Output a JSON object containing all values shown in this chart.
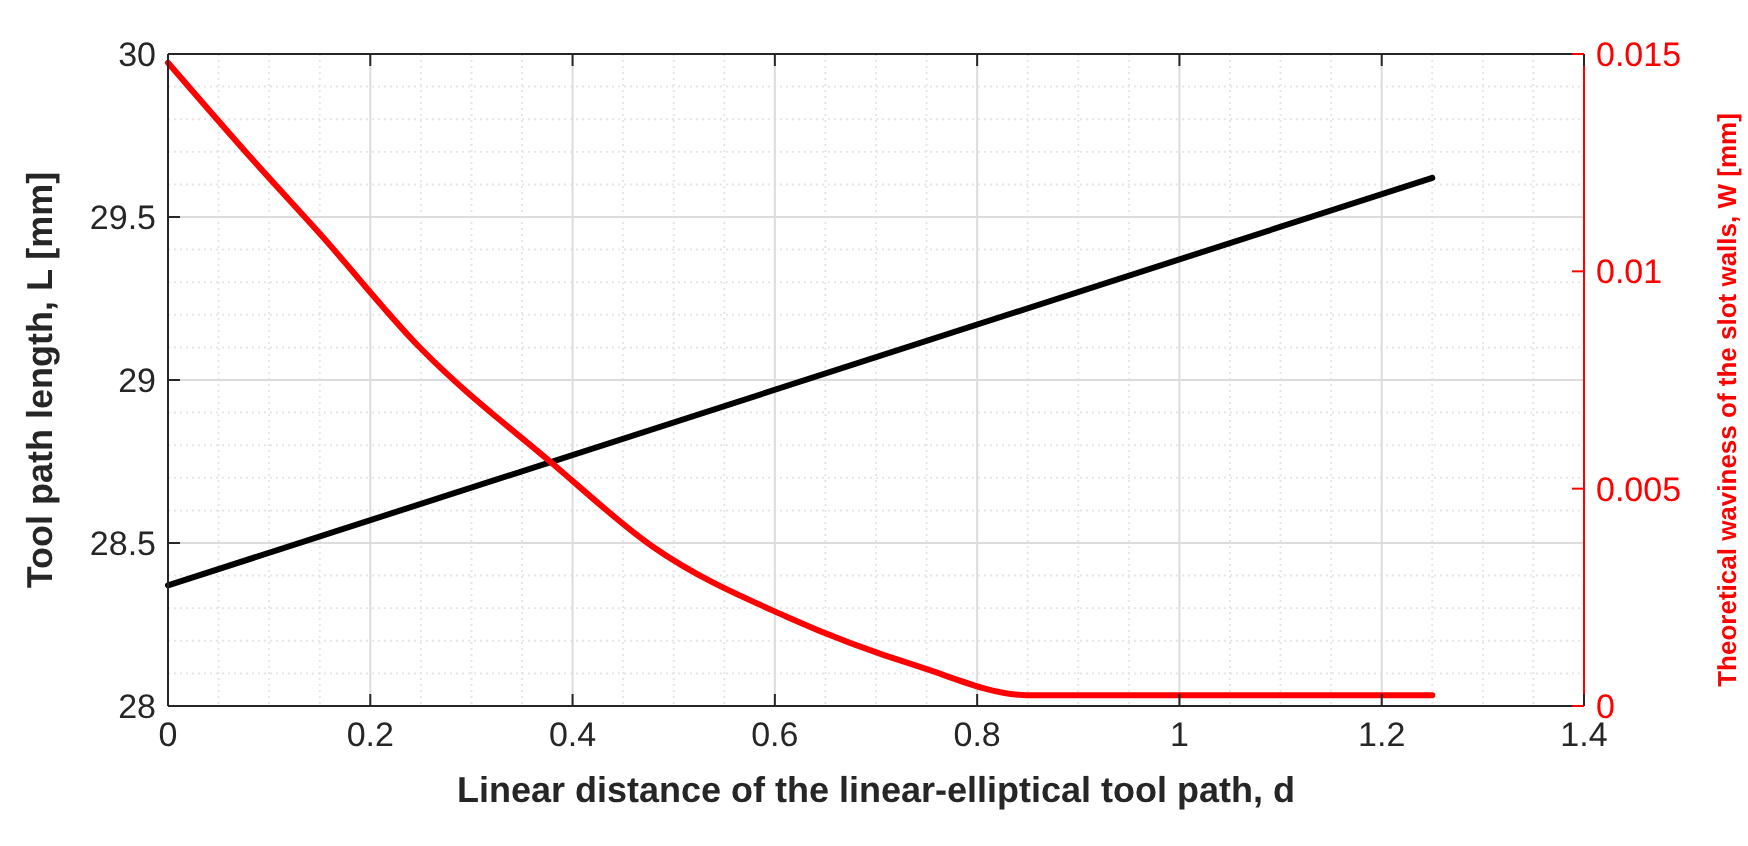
{
  "chart_data": {
    "type": "line",
    "xlabel": "Linear distance of the linear-elliptical tool path, d",
    "ylabel": "Tool path length, L [mm]",
    "y2label": "Theoretical waviness of the slot walls, W [mm]",
    "xlim": [
      0,
      1.4
    ],
    "xticks": [
      0,
      0.2,
      0.4,
      0.6,
      0.8,
      1,
      1.2,
      1.4
    ],
    "ylim": [
      28,
      30
    ],
    "yticks": [
      28,
      28.5,
      29,
      29.5,
      30
    ],
    "y2lim": [
      0,
      0.015
    ],
    "y2ticks": [
      0,
      0.005,
      0.01,
      0.015
    ],
    "grid": true,
    "line_style": "solid",
    "marker": "none",
    "series": [
      {
        "color": "#000000",
        "x": [
          0,
          1.25
        ],
        "values": [
          28.37,
          29.62
        ]
      },
      {
        "color": "#ff0000",
        "axis": "y2",
        "x": [
          0,
          0.084,
          0.15,
          0.248,
          0.38,
          0.479,
          0.611,
          0.742,
          0.85,
          1.25
        ],
        "values": [
          0.0148,
          0.01256,
          0.01087,
          0.00827,
          0.00558,
          0.00367,
          0.00206,
          0.00091,
          0.00025,
          0.00025
        ]
      }
    ]
  }
}
